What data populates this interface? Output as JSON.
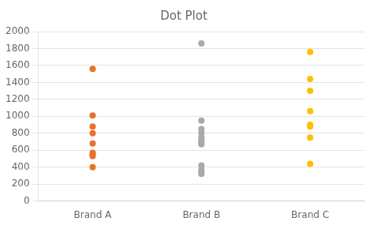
{
  "chart_data": {
    "type": "dot",
    "title": "Dot Plot",
    "categories": [
      "Brand A",
      "Brand B",
      "Brand C"
    ],
    "values": [
      [
        1560,
        1010,
        880,
        800,
        680,
        570,
        550,
        530,
        400
      ],
      [
        1860,
        950,
        850,
        800,
        750,
        720,
        700,
        680,
        670,
        420,
        370,
        340,
        320
      ],
      [
        1760,
        1440,
        1300,
        1060,
        900,
        880,
        750,
        440
      ]
    ],
    "colors": [
      "#E8722A",
      "#A9A9A9",
      "#FFC000"
    ],
    "ylim": [
      0,
      2000
    ],
    "yticks": [
      0,
      200,
      400,
      600,
      800,
      1000,
      1200,
      1400,
      1600,
      1800,
      2000
    ],
    "grid": "y"
  }
}
